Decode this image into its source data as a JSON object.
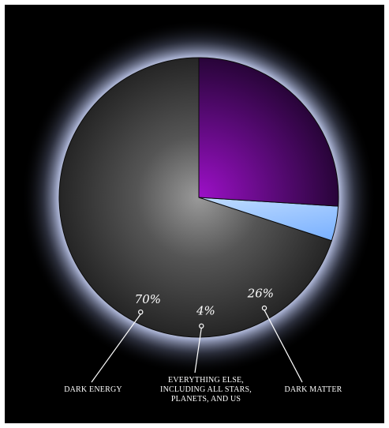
{
  "chart_data": {
    "type": "pie",
    "slices": [
      {
        "label": "DARK ENERGY",
        "value": 70,
        "value_label": "70%",
        "color": "#3a3a3a"
      },
      {
        "label": "EVERYTHING ELSE, INCLUDING ALL STARS, PLANETS, AND US",
        "label_lines": [
          "EVERYTHING ELSE,",
          "INCLUDING ALL STARS,",
          "PLANETS, AND US"
        ],
        "value": 4,
        "value_label": "4%",
        "color": "#5aa0ff"
      },
      {
        "label": "DARK MATTER",
        "value": 26,
        "value_label": "26%",
        "color": "#7a0a9a"
      }
    ],
    "legend": "none",
    "background": "#000000",
    "glow_color": "#dfe6ff"
  }
}
